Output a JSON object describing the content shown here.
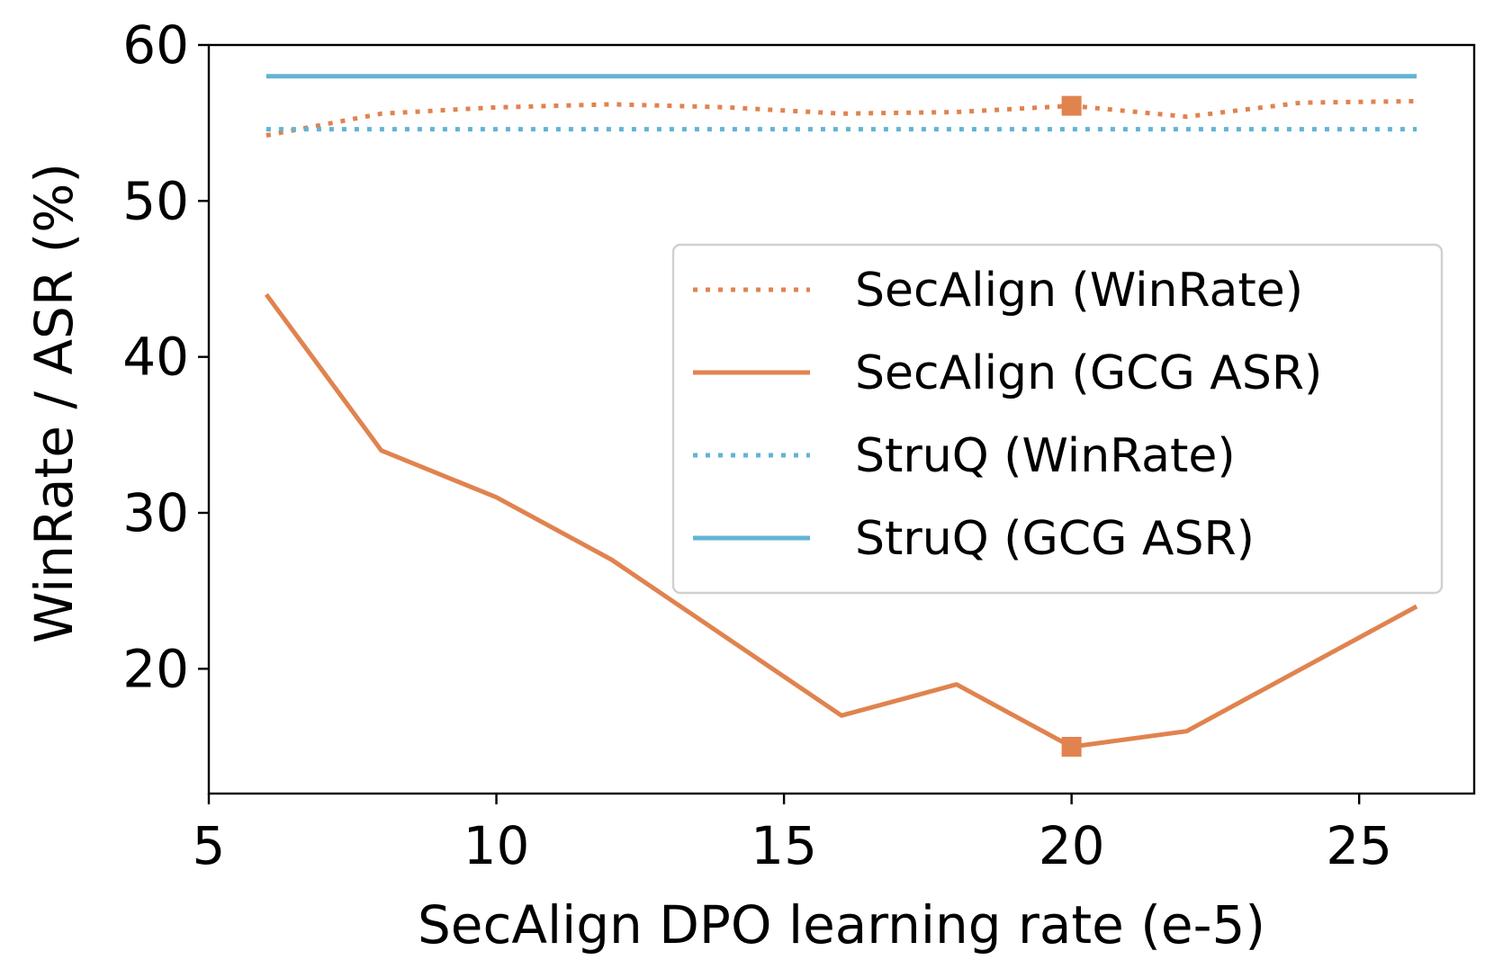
{
  "chart_data": {
    "type": "line",
    "title": "",
    "xlabel": "SecAlign DPO learning rate (e-5)",
    "ylabel": "WinRate / ASR (%)",
    "xlim": [
      5,
      27
    ],
    "ylim": [
      12,
      60
    ],
    "xticks": [
      5,
      10,
      15,
      20,
      25
    ],
    "yticks": [
      20,
      30,
      40,
      50,
      60
    ],
    "x": [
      6,
      8,
      10,
      12,
      14,
      16,
      18,
      20,
      22,
      24,
      26
    ],
    "series": [
      {
        "name": "SecAlign (WinRate)",
        "color": "#E0834F",
        "style": "dotted",
        "values": [
          54.2,
          55.6,
          56.0,
          56.2,
          56.0,
          55.6,
          55.7,
          56.1,
          55.4,
          56.3,
          56.4
        ]
      },
      {
        "name": "SecAlign (GCG ASR)",
        "color": "#E0834F",
        "style": "solid",
        "values": [
          44,
          34,
          31,
          27,
          22,
          17,
          19,
          15,
          16,
          20,
          24
        ]
      },
      {
        "name": "StruQ (WinRate)",
        "color": "#62B4D2",
        "style": "dotted",
        "values": [
          54.6,
          54.6,
          54.6,
          54.6,
          54.6,
          54.6,
          54.6,
          54.6,
          54.6,
          54.6,
          54.6
        ]
      },
      {
        "name": "StruQ (GCG ASR)",
        "color": "#62B4D2",
        "style": "solid",
        "values": [
          58,
          58,
          58,
          58,
          58,
          58,
          58,
          58,
          58,
          58,
          58
        ]
      }
    ],
    "markers": [
      {
        "series": "SecAlign (WinRate)",
        "x": 20,
        "y": 56.1,
        "shape": "square"
      },
      {
        "series": "SecAlign (GCG ASR)",
        "x": 20,
        "y": 15,
        "shape": "square"
      }
    ],
    "legend_position": "center-right",
    "grid": false
  }
}
